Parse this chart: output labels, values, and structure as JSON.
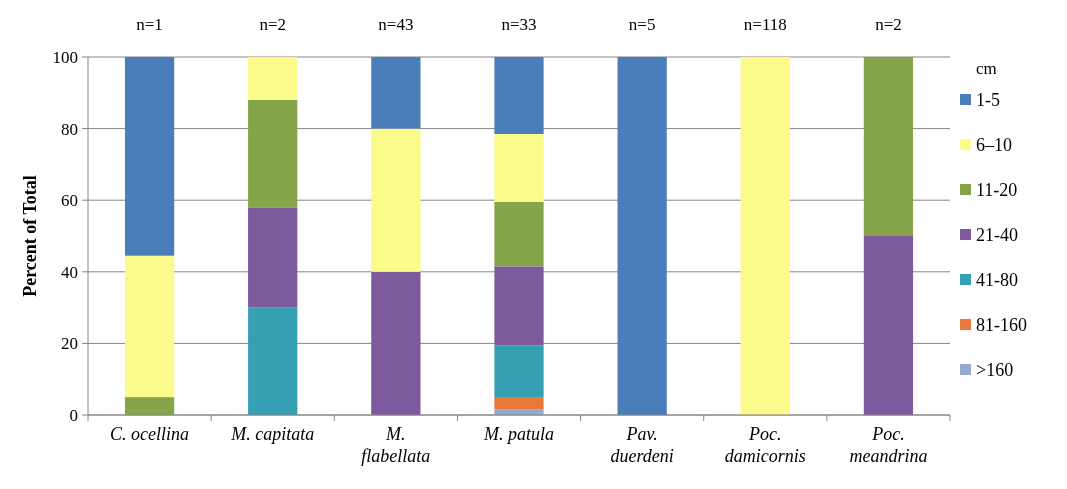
{
  "chart_data": {
    "type": "bar",
    "stacked": true,
    "ylabel": "Percent of Total",
    "legend_title": "cm",
    "legend": "right",
    "categories": [
      "C. ocellina",
      "M. capitata",
      "M. flabellata",
      "M. patula",
      "Pav. duerdeni",
      "Poc. damicornis",
      "Poc. meandrina"
    ],
    "series": [
      {
        "name": ">160",
        "color": "#93a9cf",
        "values": [
          0,
          0,
          0,
          1.5,
          0,
          0,
          0
        ]
      },
      {
        "name": "81-160",
        "color": "#e8793a",
        "values": [
          0,
          0,
          0,
          3.5,
          0,
          0,
          0
        ]
      },
      {
        "name": "41-80",
        "color": "#35a0b4",
        "values": [
          0,
          30,
          0,
          14.5,
          0,
          0,
          0
        ]
      },
      {
        "name": "21-40",
        "color": "#7d5a9e",
        "values": [
          0,
          28,
          40,
          22,
          0,
          0,
          50
        ]
      },
      {
        "name": "11-20",
        "color": "#86a44a",
        "values": [
          5,
          30,
          0,
          18,
          0,
          0,
          50
        ]
      },
      {
        "name": "6–10",
        "color": "#fbfb8c",
        "values": [
          39.5,
          12,
          40,
          19,
          0,
          100,
          0
        ]
      },
      {
        "name": "1-5",
        "color": "#4a7ebb",
        "values": [
          55.5,
          0,
          20,
          21.5,
          100,
          0,
          0
        ]
      }
    ],
    "ylim": [
      0,
      100
    ],
    "yticks": [
      0,
      20,
      40,
      60,
      80,
      100
    ],
    "grid": "y",
    "annotations": [
      "n=1",
      "n=2",
      "n=43",
      "n=33",
      "n=5",
      "n=118",
      "n=2"
    ]
  }
}
